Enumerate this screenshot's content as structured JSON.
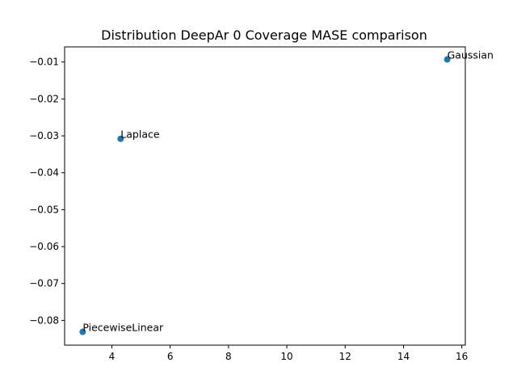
{
  "chart_data": {
    "type": "scatter",
    "title": "Distribution DeepAr 0 Coverage MASE comparison",
    "xlabel": "",
    "ylabel": "",
    "xlim": [
      2.38,
      16.12
    ],
    "ylim": [
      -0.0867,
      -0.0059
    ],
    "xticks": [
      4,
      6,
      8,
      10,
      12,
      14,
      16
    ],
    "yticks": [
      -0.08,
      -0.07,
      -0.06,
      -0.05,
      -0.04,
      -0.03,
      -0.02,
      -0.01
    ],
    "grid": false,
    "legend": "none",
    "marker_color": "#1f77b4",
    "points": [
      {
        "label": "Gaussian",
        "x": 15.5,
        "y": -0.0093
      },
      {
        "label": "Laplace",
        "x": 4.3,
        "y": -0.0308
      },
      {
        "label": "PiecewiseLinear",
        "x": 3.0,
        "y": -0.0831
      }
    ]
  }
}
